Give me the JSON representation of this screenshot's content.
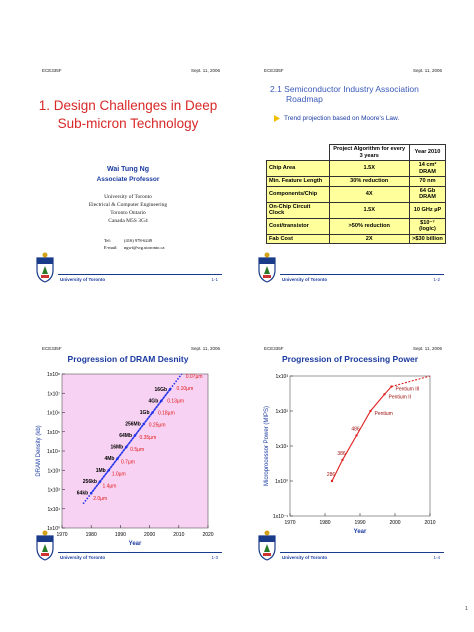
{
  "slides": [
    {
      "course": "ECE335F",
      "date": "Sept. 11, 2006",
      "title": [
        "1. Design Challenges in Deep",
        "Sub-micron Technology"
      ],
      "name": "Wai Tung Ng",
      "position": "Associate Professor",
      "address": [
        "University of Toronto",
        "Electrical & Computer Engineering",
        "Toronto Ontario",
        "Canada M5S 3G4"
      ],
      "contact": [
        {
          "label": "Tel:",
          "value": "(416) 978-6249"
        },
        {
          "label": "E-mail:",
          "value": "ngwt@vrg.utoronto.ca"
        }
      ],
      "footer": "University of Toronto",
      "number": "1-1"
    },
    {
      "course": "ECE335F",
      "date": "Sept. 11, 2006",
      "title": [
        "2.1 Semiconductor Industry Association",
        "Roadmap"
      ],
      "bullet": "Trend projection based on Moore's Law.",
      "table": {
        "header": [
          "Project Algorithm for every 3 years",
          "Year 2010"
        ],
        "rows": [
          [
            "Chip Area",
            "1.5X",
            "14 cm² DRAM"
          ],
          [
            "Min. Feature Length",
            "30% reduction",
            "70 nm"
          ],
          [
            "Components/Chip",
            "4X",
            "64 Gb DRAM"
          ],
          [
            "On-Chip Circuit Clock",
            "1.5X",
            "10 GHz µP"
          ],
          [
            "Cost/transistor",
            ">50% reduction",
            "$10⁻⁷ (logic)"
          ],
          [
            "Fab Cost",
            "2X",
            ">$30 billion"
          ]
        ]
      },
      "footer": "University of Toronto",
      "number": "1-2"
    },
    {
      "course": "ECE335F",
      "date": "Sept. 11, 2006",
      "chart": {
        "type": "line",
        "title": "Progression of DRAM Desnity",
        "ylabel": "DRAM Density (kb)",
        "xlabel": "Year",
        "log_y": true,
        "xlim": [
          1970,
          2020
        ],
        "xticks": [
          1970,
          1980,
          1990,
          2000,
          2010,
          2020
        ],
        "ylim": [
          1,
          100000000
        ],
        "yticks": [
          {
            "value": 1,
            "label": "1x10⁰"
          },
          {
            "value": 10,
            "label": "1x10¹"
          },
          {
            "value": 100,
            "label": "1x10²"
          },
          {
            "value": 1000,
            "label": "1x10³"
          },
          {
            "value": 10000,
            "label": "1x10⁴"
          },
          {
            "value": 100000,
            "label": "1x10⁵"
          },
          {
            "value": 1000000,
            "label": "1x10⁶"
          },
          {
            "value": 10000000,
            "label": "1x10⁷"
          },
          {
            "value": 100000000,
            "label": "1x10⁸"
          }
        ],
        "x": [
          1980,
          1983,
          1986,
          1989,
          1992,
          1995,
          1998,
          2001,
          2004,
          2007
        ],
        "values": [
          64,
          256,
          1000,
          4000,
          16000,
          64000,
          256000,
          1000000,
          4000000,
          16000000
        ],
        "value_labels": [
          "64kb",
          "256kb",
          "1Mb",
          "4Mb",
          "16Mb",
          "64Mb",
          "256Mb",
          "1Gb",
          "4Gb",
          "16Gb"
        ],
        "annotations": [
          "2.0µm",
          "1.4µm",
          "1.0µm",
          "0.7µm",
          "0.5µm",
          "0.35µm",
          "0.25µm",
          "0.18µm",
          "0.13µm",
          "0.10µm",
          "0.07µm"
        ],
        "color": "#2233ee",
        "annotation_color": "#e01818",
        "background": "#f8d2f2"
      },
      "footer": "University of Toronto",
      "number": "1-3"
    },
    {
      "course": "ECE335F",
      "date": "Sept. 11, 2006",
      "chart": {
        "type": "line",
        "title": "Progression of Processing Power",
        "ylabel": "Microprocessor Power (MIPS)",
        "xlabel": "Year",
        "log_y": true,
        "xlim": [
          1970,
          2010
        ],
        "xticks": [
          1970,
          1980,
          1990,
          2000,
          2010
        ],
        "ylim": [
          0.1,
          1000
        ],
        "yticks": [
          {
            "value": 0.1,
            "label": "1x10⁻¹"
          },
          {
            "value": 1,
            "label": "1x10⁰"
          },
          {
            "value": 10,
            "label": "1x10¹"
          },
          {
            "value": 100,
            "label": "1x10²"
          },
          {
            "value": 1000,
            "label": "1x10³"
          }
        ],
        "x": [
          1982,
          1985,
          1989,
          1993,
          1997,
          1999
        ],
        "values": [
          1,
          4,
          20,
          100,
          300,
          500
        ],
        "names": [
          "286",
          "386",
          "486",
          "Pentium",
          "Pentium II",
          "Pentium III"
        ],
        "color": "#e02020",
        "background": "#ffffff"
      },
      "footer": "University of Toronto",
      "number": "1-4"
    }
  ],
  "page_number": "1"
}
